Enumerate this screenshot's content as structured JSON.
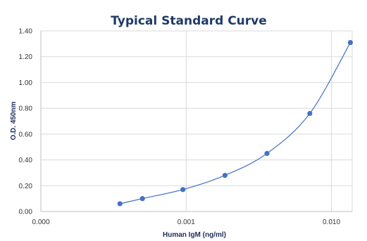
{
  "chart_data": {
    "type": "scatter",
    "title": "Typical Standard Curve",
    "xlabel": "Human IgM (ng/ml)",
    "ylabel": "O.D. 450nm",
    "x_scale": "log",
    "x_ticks": [
      {
        "value": 0.0001,
        "label": "0.000"
      },
      {
        "value": 0.001,
        "label": "0.001"
      },
      {
        "value": 0.01,
        "label": "0.010"
      }
    ],
    "xlim": [
      0.0001,
      0.0139
    ],
    "ylim": [
      0,
      1.4
    ],
    "y_ticks": [
      {
        "value": 0,
        "label": "0.00"
      },
      {
        "value": 0.2,
        "label": "0.20"
      },
      {
        "value": 0.4,
        "label": "0.40"
      },
      {
        "value": 0.6,
        "label": "0.60"
      },
      {
        "value": 0.8,
        "label": "0.80"
      },
      {
        "value": 1.0,
        "label": "1.00"
      },
      {
        "value": 1.2,
        "label": "1.20"
      },
      {
        "value": 1.4,
        "label": "1.40"
      }
    ],
    "grid": true,
    "series": [
      {
        "x": [
          0.00035,
          0.0005,
          0.00095,
          0.00185,
          0.0036,
          0.0071,
          0.0135
        ],
        "y": [
          0.06,
          0.1,
          0.17,
          0.28,
          0.45,
          0.76,
          1.31
        ]
      }
    ],
    "colors": {
      "title": "#1f3a68",
      "series": "#4472c4",
      "grid": "#d9d9d9"
    }
  }
}
